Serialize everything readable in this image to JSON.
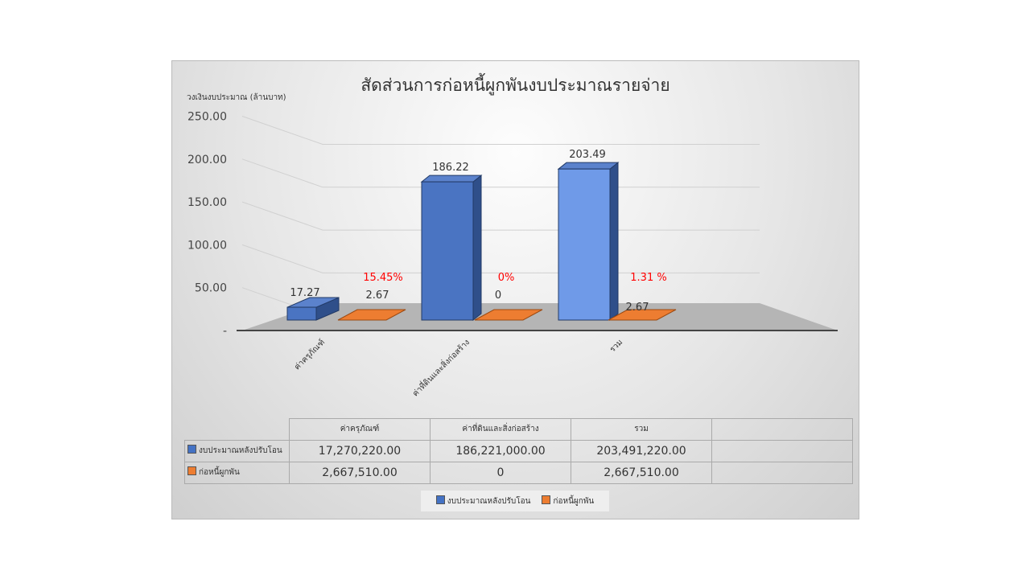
{
  "chart_data": {
    "type": "bar",
    "title": "สัดส่วนการก่อหนี้ผูกพันงบประมาณรายจ่าย",
    "ylabel": "วงเงินงบประมาณ (ล้านบาท)",
    "ylim": [
      0,
      250
    ],
    "yticks": [
      "-",
      "50.00",
      "100.00",
      "150.00",
      "200.00",
      "250.00"
    ],
    "categories": [
      "ค่าครุภัณฑ์",
      "ค่าที่ดินและสิ่งก่อสร้าง",
      "รวม"
    ],
    "series": [
      {
        "name": "งบประมาณหลังปรับโอน",
        "color": "#4472C4",
        "values": [
          17.27,
          186.22,
          203.49
        ],
        "labels": [
          "17.27",
          "186.22",
          "203.49"
        ],
        "table": [
          "17,270,220.00",
          "186,221,000.00",
          "203,491,220.00"
        ]
      },
      {
        "name": "ก่อหนี้ผูกพัน",
        "color": "#ED7D31",
        "values": [
          2.67,
          0,
          2.67
        ],
        "labels": [
          "2.67",
          "0",
          "2.67"
        ],
        "table": [
          "2,667,510.00",
          "0",
          "2,667,510.00"
        ]
      }
    ],
    "annotations": [
      "15.45%",
      "0%",
      "1.31 %"
    ],
    "annotation_color": "#FF0000",
    "grid": true,
    "legend": "bottom"
  }
}
